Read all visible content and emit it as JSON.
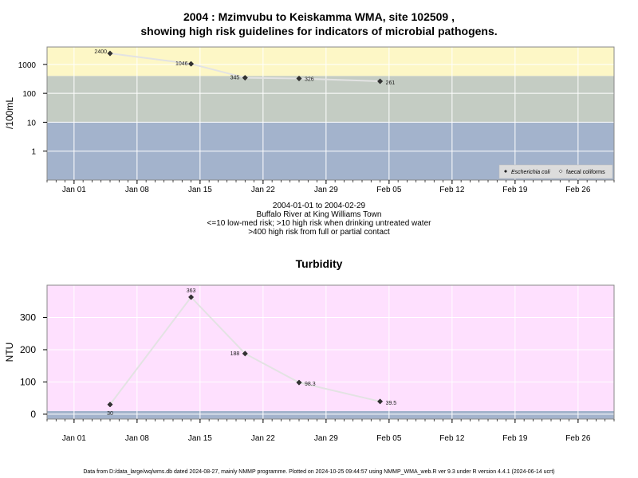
{
  "chart_data": [
    {
      "type": "scatter",
      "title_line1": "2004 : Mzimvubu to Keiskamma WMA, site 102509 ,",
      "title_line2": "showing high risk guidelines for indicators of microbial pathogens.",
      "ylabel": "/100mL",
      "y_scale": "log",
      "ylim": [
        0.1,
        4000
      ],
      "y_ticks": [
        1,
        10,
        100,
        1000
      ],
      "y_tick_labels": [
        "1",
        "10",
        "100",
        "1000"
      ],
      "x_ticks": [
        "Jan 01",
        "Jan 08",
        "Jan 15",
        "Jan 22",
        "Jan 29",
        "Feb 05",
        "Feb 12",
        "Feb 19",
        "Feb 26"
      ],
      "x_range": [
        "2003-12-29",
        "2004-03-01"
      ],
      "bands": [
        {
          "from": 0.1,
          "to": 10,
          "color": "#a3b3cc"
        },
        {
          "from": 10,
          "to": 400,
          "color": "#c4ccc3"
        },
        {
          "from": 400,
          "to": 4000,
          "color": "#fdf7c6"
        }
      ],
      "series": [
        {
          "name": "Escherichia coli",
          "x": [
            "2004-01-05",
            "2004-01-14",
            "2004-01-20",
            "2004-01-26",
            "2004-02-04"
          ],
          "y": [
            2400,
            1046,
            345,
            326,
            261
          ],
          "labels": [
            "2400",
            "1046",
            "345",
            "326",
            "261"
          ]
        }
      ],
      "legend": {
        "placement": "bottom-right",
        "items": [
          "Escherichia coli",
          "faecal coliforms"
        ]
      },
      "grid": true
    },
    {
      "type": "scatter",
      "title": "Turbidity",
      "ylabel": "NTU",
      "ylim": [
        -15,
        400
      ],
      "y_ticks": [
        0,
        100,
        200,
        300
      ],
      "y_tick_labels": [
        "0",
        "100",
        "200",
        "300"
      ],
      "x_ticks": [
        "Jan 01",
        "Jan 08",
        "Jan 15",
        "Jan 22",
        "Jan 29",
        "Feb 05",
        "Feb 12",
        "Feb 19",
        "Feb 26"
      ],
      "x_range": [
        "2003-12-29",
        "2004-03-01"
      ],
      "bands": [
        {
          "from": -15,
          "to": 10,
          "color": "#a3b3cc"
        },
        {
          "from": 10,
          "to": 400,
          "color": "#fee0fe"
        }
      ],
      "series": [
        {
          "x": [
            "2004-01-05",
            "2004-01-14",
            "2004-01-20",
            "2004-01-26",
            "2004-02-04"
          ],
          "y": [
            30,
            363,
            188,
            98.3,
            39.5
          ],
          "labels": [
            "30",
            "363",
            "188",
            "98.3",
            "39.5"
          ]
        }
      ],
      "grid": true
    }
  ],
  "subtitle": {
    "line1": "2004-01-01 to 2004-02-29",
    "line2": "Buffalo River at King Williams Town",
    "line3": "<=10 low-med risk; >10 high risk when drinking untreated water",
    "line4": ">400 high risk from full or partial contact"
  },
  "footer": "Data from D:/data_large/wq/wms.db dated 2024-08-27, mainly NMMP programme. Plotted on 2024-10-25 09:44:57 using NMMP_WMA_web.R ver 9.3 under R version 4.4.1 (2024-06-14 ucrt)",
  "colors": {
    "low_band": "#a3b3cc",
    "mid_band": "#c4ccc3",
    "high_band": "#fdf7c6",
    "turbidity_band": "#fee0fe",
    "trace_line": "#e3e3e3",
    "marker": "#333333"
  }
}
